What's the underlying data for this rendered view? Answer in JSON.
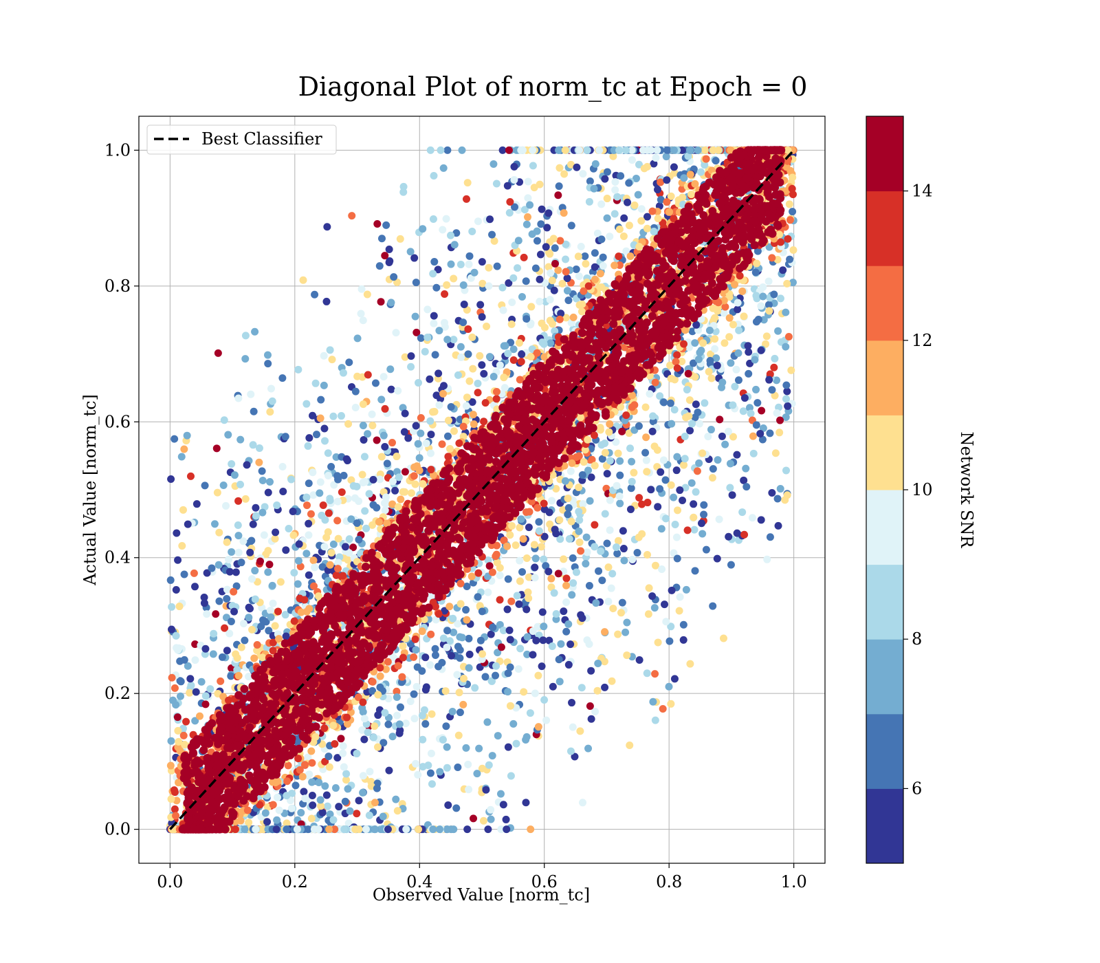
{
  "chart_data": {
    "type": "scatter",
    "title": "Diagonal Plot of norm_tc at Epoch = 0",
    "xlabel": "Observed Value [norm_tc]",
    "ylabel": "Actual Value [norm_tc]",
    "xlim": [
      -0.05,
      1.05
    ],
    "ylim": [
      -0.05,
      1.05
    ],
    "xticks": [
      0.0,
      0.2,
      0.4,
      0.6,
      0.8,
      1.0
    ],
    "xtick_labels": [
      "0.0",
      "0.2",
      "0.4",
      "0.6",
      "0.8",
      "1.0"
    ],
    "yticks": [
      0.0,
      0.2,
      0.4,
      0.6,
      0.8,
      1.0
    ],
    "ytick_labels": [
      "0.0",
      "0.2",
      "0.4",
      "0.6",
      "0.8",
      "1.0"
    ],
    "grid": true,
    "legend": {
      "placement": "upper-left",
      "entries": [
        {
          "label": "Best Classifier",
          "style": "dashed",
          "color": "#000000"
        }
      ]
    },
    "reference_line": {
      "label": "Best Classifier",
      "x": [
        0.0,
        1.0
      ],
      "y": [
        0.0,
        1.0
      ],
      "style": "dashed",
      "color": "#000000"
    },
    "scatter_description": {
      "point_count_approx": "very many",
      "color_variable": "Network SNR",
      "pattern": "high-SNR points (dark red) concentrated along the diagonal y = x; lower-SNR points (blue) scatter widely away from the diagonal",
      "domain_x": [
        0.0,
        1.0
      ],
      "domain_y": [
        0.0,
        1.0
      ]
    },
    "colorbar": {
      "label": "Network SNR",
      "range": [
        5,
        15
      ],
      "ticks": [
        6,
        8,
        10,
        12,
        14
      ],
      "tick_labels": [
        "6",
        "8",
        "10",
        "12",
        "14"
      ],
      "bins": 10,
      "colors": [
        "#313695",
        "#4575b4",
        "#74add1",
        "#abd9e9",
        "#e0f3f8",
        "#fee090",
        "#fdae61",
        "#f46d43",
        "#d73027",
        "#a50026"
      ]
    }
  }
}
